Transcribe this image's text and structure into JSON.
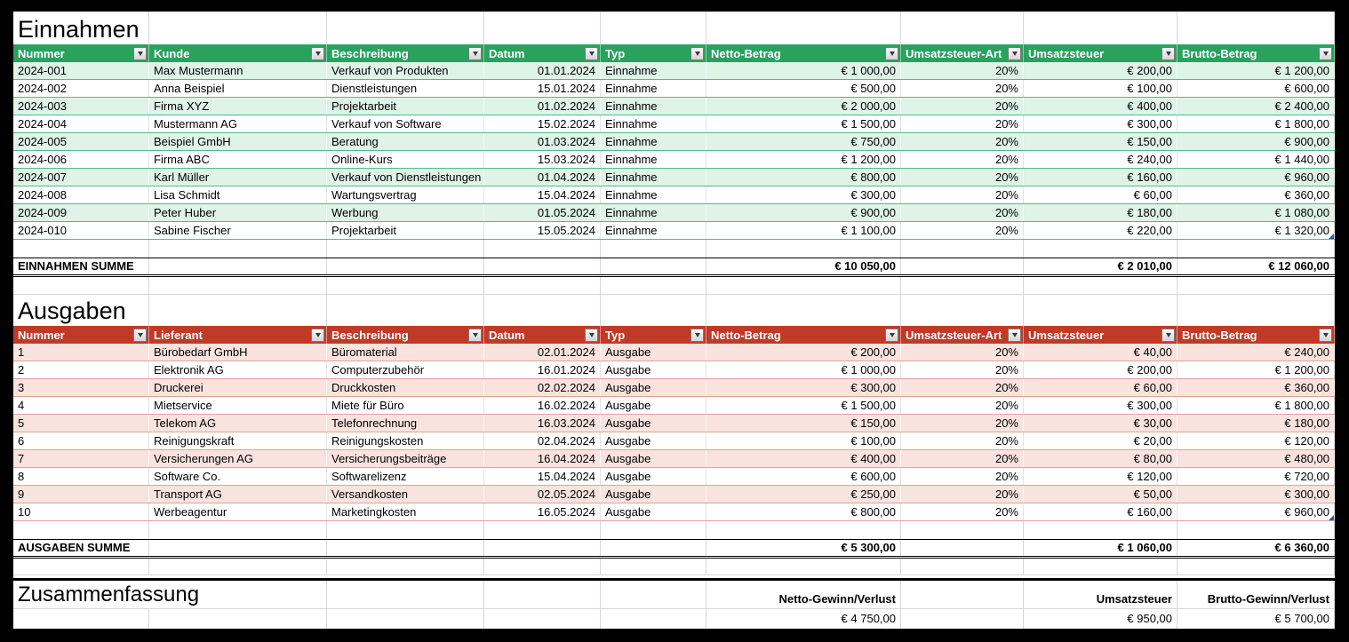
{
  "einnahmen": {
    "title": "Einnahmen",
    "columns": [
      "Nummer",
      "Kunde",
      "Beschreibung",
      "Datum",
      "Typ",
      "Netto-Betrag",
      "Umsatzsteuer-Art",
      "Umsatzsteuer",
      "Brutto-Betrag"
    ],
    "rows": [
      [
        "2024-001",
        "Max Mustermann",
        "Verkauf von Produkten",
        "01.01.2024",
        "Einnahme",
        "€ 1 000,00",
        "20%",
        "€ 200,00",
        "€ 1 200,00"
      ],
      [
        "2024-002",
        "Anna Beispiel",
        "Dienstleistungen",
        "15.01.2024",
        "Einnahme",
        "€ 500,00",
        "20%",
        "€ 100,00",
        "€ 600,00"
      ],
      [
        "2024-003",
        "Firma XYZ",
        "Projektarbeit",
        "01.02.2024",
        "Einnahme",
        "€ 2 000,00",
        "20%",
        "€ 400,00",
        "€ 2 400,00"
      ],
      [
        "2024-004",
        "Mustermann AG",
        "Verkauf von Software",
        "15.02.2024",
        "Einnahme",
        "€ 1 500,00",
        "20%",
        "€ 300,00",
        "€ 1 800,00"
      ],
      [
        "2024-005",
        "Beispiel GmbH",
        "Beratung",
        "01.03.2024",
        "Einnahme",
        "€ 750,00",
        "20%",
        "€ 150,00",
        "€ 900,00"
      ],
      [
        "2024-006",
        "Firma ABC",
        "Online-Kurs",
        "15.03.2024",
        "Einnahme",
        "€ 1 200,00",
        "20%",
        "€ 240,00",
        "€ 1 440,00"
      ],
      [
        "2024-007",
        "Karl Müller",
        "Verkauf von Dienstleistungen",
        "01.04.2024",
        "Einnahme",
        "€ 800,00",
        "20%",
        "€ 160,00",
        "€ 960,00"
      ],
      [
        "2024-008",
        "Lisa Schmidt",
        "Wartungsvertrag",
        "15.04.2024",
        "Einnahme",
        "€ 300,00",
        "20%",
        "€ 60,00",
        "€ 360,00"
      ],
      [
        "2024-009",
        "Peter Huber",
        "Werbung",
        "01.05.2024",
        "Einnahme",
        "€ 900,00",
        "20%",
        "€ 180,00",
        "€ 1 080,00"
      ],
      [
        "2024-010",
        "Sabine Fischer",
        "Projektarbeit",
        "15.05.2024",
        "Einnahme",
        "€ 1 100,00",
        "20%",
        "€ 220,00",
        "€ 1 320,00"
      ]
    ],
    "sum": {
      "label": "EINNAHMEN SUMME",
      "netto": "€ 10 050,00",
      "umsatzsteuer": "€ 2 010,00",
      "brutto": "€ 12 060,00"
    }
  },
  "ausgaben": {
    "title": "Ausgaben",
    "columns": [
      "Nummer",
      "Lieferant",
      "Beschreibung",
      "Datum",
      "Typ",
      "Netto-Betrag",
      "Umsatzsteuer-Art",
      "Umsatzsteuer",
      "Brutto-Betrag"
    ],
    "rows": [
      [
        "1",
        "Bürobedarf GmbH",
        "Büromaterial",
        "02.01.2024",
        "Ausgabe",
        "€ 200,00",
        "20%",
        "€ 40,00",
        "€ 240,00"
      ],
      [
        "2",
        "Elektronik AG",
        "Computerzubehör",
        "16.01.2024",
        "Ausgabe",
        "€ 1 000,00",
        "20%",
        "€ 200,00",
        "€ 1 200,00"
      ],
      [
        "3",
        "Druckerei",
        "Druckkosten",
        "02.02.2024",
        "Ausgabe",
        "€ 300,00",
        "20%",
        "€ 60,00",
        "€ 360,00"
      ],
      [
        "4",
        "Mietservice",
        "Miete für Büro",
        "16.02.2024",
        "Ausgabe",
        "€ 1 500,00",
        "20%",
        "€ 300,00",
        "€ 1 800,00"
      ],
      [
        "5",
        "Telekom AG",
        "Telefonrechnung",
        "16.03.2024",
        "Ausgabe",
        "€ 150,00",
        "20%",
        "€ 30,00",
        "€ 180,00"
      ],
      [
        "6",
        "Reinigungskraft",
        "Reinigungskosten",
        "02.04.2024",
        "Ausgabe",
        "€ 100,00",
        "20%",
        "€ 20,00",
        "€ 120,00"
      ],
      [
        "7",
        "Versicherungen AG",
        "Versicherungsbeiträge",
        "16.04.2024",
        "Ausgabe",
        "€ 400,00",
        "20%",
        "€ 80,00",
        "€ 480,00"
      ],
      [
        "8",
        "Software Co.",
        "Softwarelizenz",
        "15.04.2024",
        "Ausgabe",
        "€ 600,00",
        "20%",
        "€ 120,00",
        "€ 720,00"
      ],
      [
        "9",
        "Transport AG",
        "Versandkosten",
        "02.05.2024",
        "Ausgabe",
        "€ 250,00",
        "20%",
        "€ 50,00",
        "€ 300,00"
      ],
      [
        "10",
        "Werbeagentur",
        "Marketingkosten",
        "16.05.2024",
        "Ausgabe",
        "€ 800,00",
        "20%",
        "€ 160,00",
        "€ 960,00"
      ]
    ],
    "sum": {
      "label": "AUSGABEN SUMME",
      "netto": "€ 5 300,00",
      "umsatzsteuer": "€ 1 060,00",
      "brutto": "€ 6 360,00"
    }
  },
  "zusammenfassung": {
    "title": "Zusammenfassung",
    "netto_label": "Netto-Gewinn/Verlust",
    "umsatzsteuer_label": "Umsatzsteuer",
    "brutto_label": "Brutto-Gewinn/Verlust",
    "netto_value": "€ 4 750,00",
    "umsatzsteuer_value": "€ 950,00",
    "brutto_value": "€ 5 700,00"
  },
  "icons": {
    "filter_dropdown": "chevron-down"
  },
  "colors": {
    "einnahmen_header": "#2AA15E",
    "einnahmen_band": "#DFF3E7",
    "einnahmen_separator": "#4FBC85",
    "ausgaben_header": "#C03A28",
    "ausgaben_band": "#F8E3DF",
    "ausgaben_separator": "#E3A197",
    "header_text": "#FFFFFF",
    "grid_line": "#D8D8D8",
    "frame_background": "#000000",
    "resize_handle": "#2F54A8"
  }
}
